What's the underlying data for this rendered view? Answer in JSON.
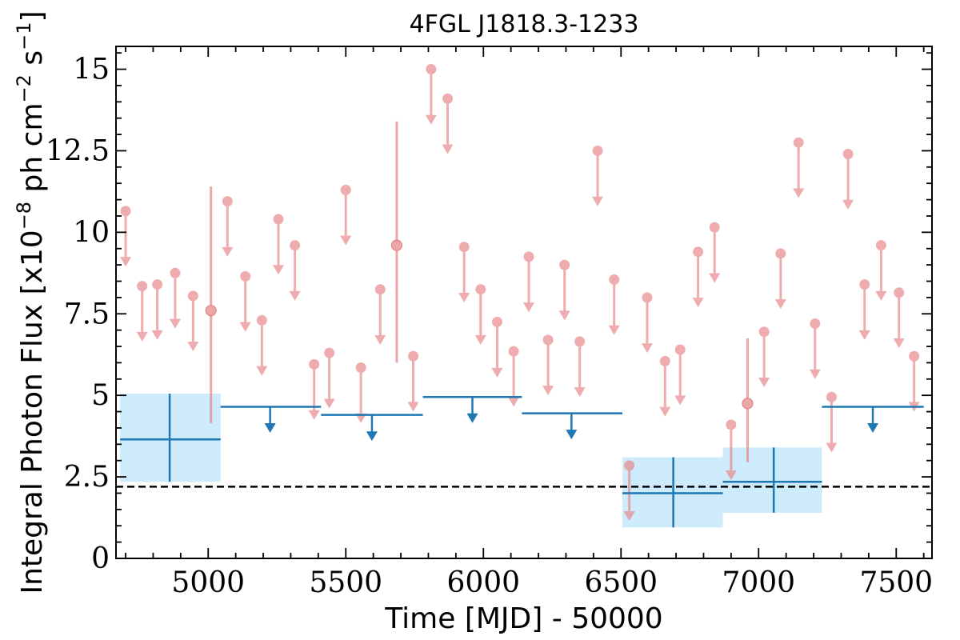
{
  "chart_data": {
    "type": "scatter",
    "title": "4FGL J1818.3-1233",
    "xlabel": "Time [MJD] - 50000",
    "ylabel_parts": {
      "pre": "Integral Photon Flux [x10",
      "exp1": "−8",
      "mid": " ph cm",
      "exp2": "−2",
      "mid2": " s",
      "exp3": "−1",
      "post": "]"
    },
    "xlim": [
      4665,
      7630
    ],
    "ylim": [
      0,
      15.7
    ],
    "x_ticks": [
      5000,
      5500,
      6000,
      6500,
      7000,
      7500
    ],
    "x_tick_labels": [
      "5000",
      "5500",
      "6000",
      "6500",
      "7000",
      "7500"
    ],
    "y_ticks": [
      0,
      2.5,
      5,
      7.5,
      10,
      12.5,
      15
    ],
    "y_tick_labels": [
      "0",
      "2.5",
      "5",
      "7.5",
      "10",
      "12.5",
      "15"
    ],
    "x_minor_step": 100,
    "y_minor_step": 0.5,
    "reference_line": {
      "y": 2.2,
      "style": "dashed",
      "color": "#000000"
    },
    "colors": {
      "short_bin": "#e8898c",
      "long_bin": "#1f77b4",
      "long_bin_band": "#cdebfb"
    },
    "series": [
      {
        "color": "#e8898c",
        "upper_limits": [
          {
            "x": 4700,
            "y": 10.65
          },
          {
            "x": 4760,
            "y": 8.35
          },
          {
            "x": 4815,
            "y": 8.4
          },
          {
            "x": 4880,
            "y": 8.75
          },
          {
            "x": 4945,
            "y": 8.05
          },
          {
            "x": 5070,
            "y": 10.95
          },
          {
            "x": 5135,
            "y": 8.65
          },
          {
            "x": 5195,
            "y": 7.3
          },
          {
            "x": 5255,
            "y": 10.4
          },
          {
            "x": 5315,
            "y": 9.6
          },
          {
            "x": 5385,
            "y": 5.95
          },
          {
            "x": 5440,
            "y": 6.3
          },
          {
            "x": 5500,
            "y": 11.3
          },
          {
            "x": 5555,
            "y": 5.85
          },
          {
            "x": 5625,
            "y": 8.25
          },
          {
            "x": 5745,
            "y": 6.2
          },
          {
            "x": 5810,
            "y": 15.0
          },
          {
            "x": 5870,
            "y": 14.1
          },
          {
            "x": 5930,
            "y": 9.55
          },
          {
            "x": 5990,
            "y": 8.25
          },
          {
            "x": 6050,
            "y": 7.25
          },
          {
            "x": 6110,
            "y": 6.35
          },
          {
            "x": 6165,
            "y": 9.25
          },
          {
            "x": 6235,
            "y": 6.7
          },
          {
            "x": 6295,
            "y": 9.0
          },
          {
            "x": 6350,
            "y": 6.65
          },
          {
            "x": 6415,
            "y": 12.5
          },
          {
            "x": 6475,
            "y": 8.55
          },
          {
            "x": 6530,
            "y": 2.85
          },
          {
            "x": 6595,
            "y": 8.0
          },
          {
            "x": 6660,
            "y": 6.05
          },
          {
            "x": 6715,
            "y": 6.4
          },
          {
            "x": 6780,
            "y": 9.4
          },
          {
            "x": 6840,
            "y": 10.15
          },
          {
            "x": 6900,
            "y": 4.1
          },
          {
            "x": 7020,
            "y": 6.95
          },
          {
            "x": 7080,
            "y": 9.35
          },
          {
            "x": 7145,
            "y": 12.75
          },
          {
            "x": 7205,
            "y": 7.2
          },
          {
            "x": 7265,
            "y": 4.95
          },
          {
            "x": 7325,
            "y": 12.4
          },
          {
            "x": 7385,
            "y": 8.4
          },
          {
            "x": 7445,
            "y": 9.6
          },
          {
            "x": 7510,
            "y": 8.15
          },
          {
            "x": 7565,
            "y": 6.2
          }
        ],
        "detections": [
          {
            "x": 5010,
            "y": 7.6,
            "y_low": 4.15,
            "y_high": 11.4
          },
          {
            "x": 5685,
            "y": 9.6,
            "y_low": 6.0,
            "y_high": 13.4
          },
          {
            "x": 6960,
            "y": 4.75,
            "y_low": 2.95,
            "y_high": 6.75
          }
        ]
      },
      {
        "color": "#1f77b4",
        "upper_limits": [
          {
            "x_min": 5045,
            "x_max": 5410,
            "x": 5225,
            "y": 4.65
          },
          {
            "x_min": 5410,
            "x_max": 5780,
            "x": 5595,
            "y": 4.4
          },
          {
            "x_min": 5780,
            "x_max": 6140,
            "x": 5960,
            "y": 4.95
          },
          {
            "x_min": 6140,
            "x_max": 6505,
            "x": 6320,
            "y": 4.45
          },
          {
            "x_min": 7230,
            "x_max": 7600,
            "x": 7415,
            "y": 4.65
          }
        ],
        "detections": [
          {
            "x_min": 4680,
            "x_max": 5045,
            "x": 4860,
            "y": 3.65,
            "y_low": 2.35,
            "y_high": 5.05
          },
          {
            "x_min": 6505,
            "x_max": 6870,
            "x": 6690,
            "y": 2.0,
            "y_low": 0.95,
            "y_high": 3.1
          },
          {
            "x_min": 6870,
            "x_max": 7230,
            "x": 7055,
            "y": 2.35,
            "y_low": 1.4,
            "y_high": 3.4
          }
        ]
      }
    ]
  }
}
